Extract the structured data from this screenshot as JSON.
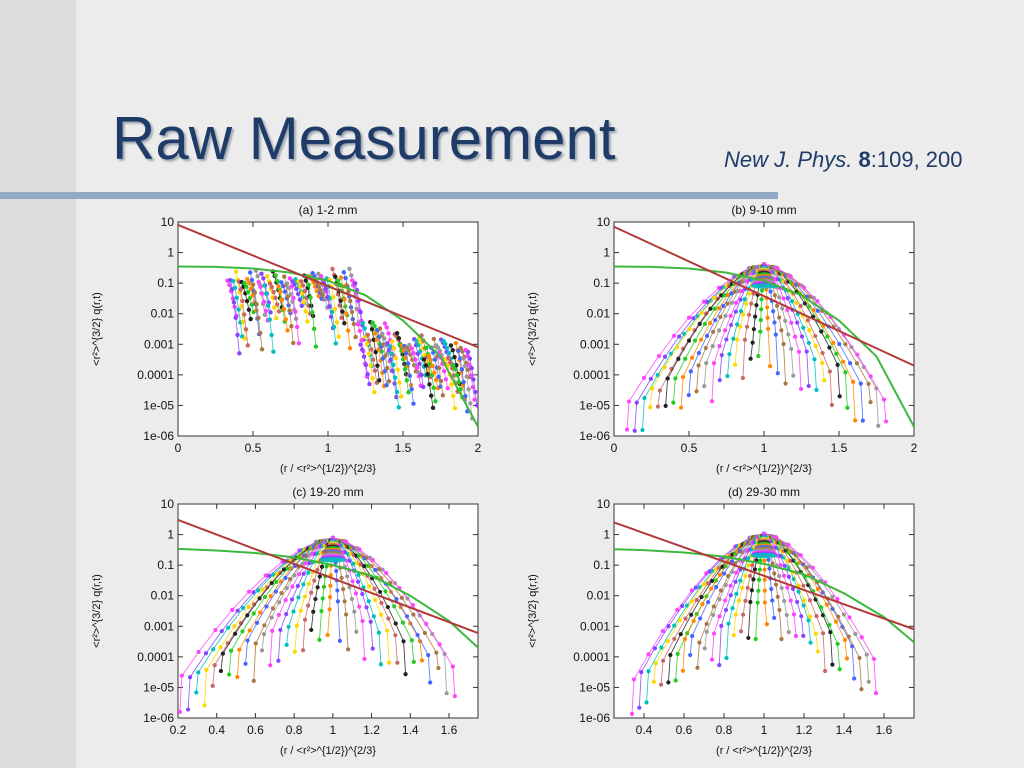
{
  "slide": {
    "title": "Raw Measurement",
    "citation": {
      "journal": "New J. Phys.",
      "volume": "8",
      "rest": ":109, 200"
    }
  },
  "colors": {
    "title": "#1f3b68",
    "rule": "#91a9c4",
    "power_law_fit": "#b23a3a",
    "gaussian_fit": "#3cb83c",
    "curve_palette": [
      "#ff44ff",
      "#8844ff",
      "#00bfbf",
      "#ffd700",
      "#cc6666",
      "#222222",
      "#22cc22",
      "#ff8800",
      "#4466ff",
      "#aa7744",
      "#999999"
    ]
  },
  "axes_common": {
    "ylabel": "<r²>^{3/2} q(r,t)",
    "xlabel": "(r / <r²>^{1/2})^{2/3}",
    "ytick_labels": [
      "10",
      "1",
      "0.1",
      "0.01",
      "0.001",
      "0.0001",
      "1e-05",
      "1e-06"
    ],
    "yscale": "log"
  },
  "chart_data": [
    {
      "type": "scatter",
      "title": "(a) 1-2 mm",
      "xlim": [
        0,
        2
      ],
      "ylim": [
        1e-06,
        10
      ],
      "xticks": [
        "0",
        "0.5",
        "1",
        "1.5",
        "2"
      ],
      "power_law_fit": {
        "x": [
          0,
          2
        ],
        "y": [
          8,
          0.0008
        ]
      },
      "gaussian_fit": {
        "x": [
          0,
          0.25,
          0.5,
          0.75,
          1.0,
          1.25,
          1.5,
          1.75,
          2.0
        ],
        "y": [
          0.35,
          0.34,
          0.3,
          0.22,
          0.12,
          0.04,
          0.006,
          0.0004,
          2e-06
        ]
      },
      "data_clusters": [
        {
          "x_range": [
            0.33,
            1.2
          ],
          "y_peak": 0.3,
          "drop_to": 0.001
        },
        {
          "x_range": [
            1.2,
            1.95
          ],
          "y_peak": 0.008,
          "drop_to": 1e-05
        }
      ]
    },
    {
      "type": "scatter",
      "title": "(b) 9-10 mm",
      "xlim": [
        0,
        2
      ],
      "ylim": [
        1e-06,
        10
      ],
      "xticks": [
        "0",
        "0.5",
        "1",
        "1.5",
        "2"
      ],
      "power_law_fit": {
        "x": [
          0,
          2
        ],
        "y": [
          7,
          0.0002
        ]
      },
      "gaussian_fit": {
        "x": [
          0,
          0.25,
          0.5,
          0.75,
          1.0,
          1.25,
          1.5,
          1.75,
          2.0
        ],
        "y": [
          0.35,
          0.34,
          0.3,
          0.22,
          0.12,
          0.04,
          0.006,
          0.0004,
          2e-06
        ]
      },
      "peak": {
        "x": 1.0,
        "y": 0.7
      },
      "fan_x_range": [
        0.1,
        1.8
      ],
      "tail_min": 1e-05
    },
    {
      "type": "scatter",
      "title": "(c) 19-20 mm",
      "xlim": [
        0.2,
        1.75
      ],
      "ylim": [
        1e-06,
        10
      ],
      "xticks": [
        "0.2",
        "0.4",
        "0.6",
        "0.8",
        "1",
        "1.2",
        "1.4",
        "1.6"
      ],
      "power_law_fit": {
        "x": [
          0.2,
          1.75
        ],
        "y": [
          3,
          0.0006
        ]
      },
      "gaussian_fit": {
        "x": [
          0.2,
          0.4,
          0.6,
          0.8,
          1.0,
          1.2,
          1.4,
          1.6,
          1.75
        ],
        "y": [
          0.34,
          0.3,
          0.25,
          0.18,
          0.1,
          0.045,
          0.01,
          0.0015,
          0.0002
        ]
      },
      "peak": {
        "x": 1.0,
        "y": 1.3
      },
      "fan_x_range": [
        0.22,
        1.62
      ],
      "tail_min": 3e-06
    },
    {
      "type": "scatter",
      "title": "(d) 29-30 mm",
      "xlim": [
        0.25,
        1.75
      ],
      "ylim": [
        1e-06,
        10
      ],
      "xticks": [
        "0.4",
        "0.6",
        "0.8",
        "1",
        "1.2",
        "1.4",
        "1.6"
      ],
      "power_law_fit": {
        "x": [
          0.25,
          1.75
        ],
        "y": [
          2.5,
          0.0008
        ]
      },
      "gaussian_fit": {
        "x": [
          0.25,
          0.4,
          0.6,
          0.8,
          1.0,
          1.2,
          1.4,
          1.6,
          1.75
        ],
        "y": [
          0.33,
          0.31,
          0.26,
          0.19,
          0.11,
          0.05,
          0.012,
          0.002,
          0.0003
        ]
      },
      "peak": {
        "x": 1.0,
        "y": 1.8
      },
      "fan_x_range": [
        0.35,
        1.55
      ],
      "tail_min": 8e-06
    }
  ]
}
